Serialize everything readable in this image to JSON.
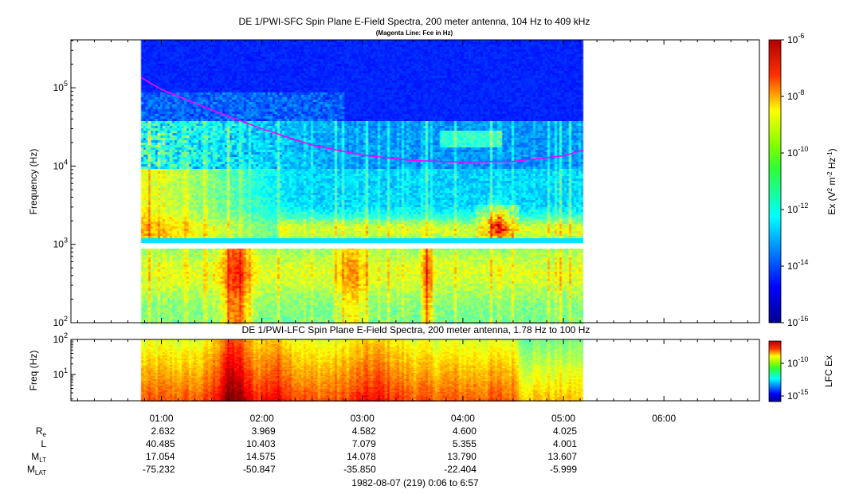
{
  "chart_data": [
    {
      "type": "heatmap",
      "title": "DE 1/PWI-SFC  Spin Plane E-Field Spectra, 200 meter antenna, 104 Hz to 409 kHz",
      "subtitle": "(Magenta Line: Fce in Hz)",
      "ylabel": "Frequency (Hz)",
      "y_scale": "log",
      "ylim_hz": [
        100,
        409000
      ],
      "y_ticks": [
        {
          "v": 100,
          "b": "10",
          "e": "2"
        },
        {
          "v": 1000,
          "b": "10",
          "e": "3"
        },
        {
          "v": 10000,
          "b": "10",
          "e": "4"
        },
        {
          "v": 100000,
          "b": "10",
          "e": "5"
        }
      ],
      "data_time_range": [
        "00:48",
        "05:12"
      ],
      "data_gap_hz": [
        1000,
        1200
      ],
      "fce_line": {
        "name": "Fce",
        "color": "#ff00ff",
        "times": [
          "00:48",
          "01:00",
          "01:30",
          "02:00",
          "02:30",
          "03:00",
          "03:30",
          "04:00",
          "04:30",
          "05:00",
          "05:12"
        ],
        "values_hz": [
          135000,
          95000,
          52000,
          30000,
          18500,
          13800,
          11800,
          11200,
          11500,
          13500,
          16000
        ]
      },
      "colorbar": {
        "label": "Ex (V2 m-2 Hz-1)",
        "scale": "log",
        "range": [
          1e-16,
          1e-06
        ],
        "ticks": [
          {
            "b": "10",
            "e": "-6"
          },
          {
            "b": "10",
            "e": "-8"
          },
          {
            "b": "10",
            "e": "-10"
          },
          {
            "b": "10",
            "e": "-12"
          },
          {
            "b": "10",
            "e": "-14"
          },
          {
            "b": "10",
            "e": "-16"
          }
        ]
      }
    },
    {
      "type": "heatmap",
      "title": "DE 1/PWI-LFC  Spin Plane E-Field Spectra, 200 meter antenna, 1.78 Hz to 100 Hz",
      "ylabel": "Freq (Hz)",
      "y_scale": "log",
      "ylim_hz": [
        1.78,
        100
      ],
      "y_ticks": [
        {
          "v": 10,
          "b": "10",
          "e": "1"
        },
        {
          "v": 100,
          "b": "10",
          "e": "2"
        }
      ],
      "data_time_range": [
        "00:48",
        "05:12"
      ],
      "colorbar": {
        "label": "LFC Ex",
        "scale": "log",
        "ticks": [
          {
            "b": "10",
            "e": "-10"
          },
          {
            "b": "10",
            "e": "-15"
          }
        ]
      }
    }
  ],
  "time_axis": {
    "range": [
      "00:06",
      "06:57"
    ],
    "ticks": [
      "01:00",
      "02:00",
      "03:00",
      "04:00",
      "05:00",
      "06:00"
    ]
  },
  "ephemeris": {
    "rows": [
      {
        "label": "R",
        "sub": "e",
        "values": [
          "2.632",
          "3.969",
          "4.582",
          "4.600",
          "4.025"
        ]
      },
      {
        "label": "L",
        "sub": "",
        "values": [
          "40.485",
          "10.403",
          "7.079",
          "5.355",
          "4.001"
        ]
      },
      {
        "label": "M",
        "sub": "LT",
        "values": [
          "17.054",
          "14.575",
          "14.078",
          "13.790",
          "13.607"
        ]
      },
      {
        "label": "M",
        "sub": "LAT",
        "values": [
          "-75.232",
          "-50.847",
          "-35.850",
          "-22.404",
          "-5.999"
        ]
      }
    ]
  },
  "footer": "1982-08-07 (219) 0:06 to 6:57"
}
